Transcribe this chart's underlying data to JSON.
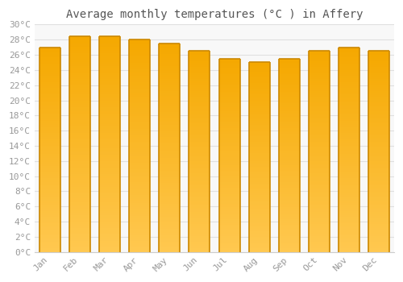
{
  "title": "Average monthly temperatures (°C ) in Affery",
  "months": [
    "Jan",
    "Feb",
    "Mar",
    "Apr",
    "May",
    "Jun",
    "Jul",
    "Aug",
    "Sep",
    "Oct",
    "Nov",
    "Dec"
  ],
  "values": [
    27.0,
    28.5,
    28.5,
    28.0,
    27.5,
    26.5,
    25.5,
    25.0,
    25.5,
    26.5,
    27.0,
    26.5
  ],
  "bar_color_top": "#F5A800",
  "bar_color_bottom": "#FFCC44",
  "bar_edge_left": "#CC8800",
  "bar_edge_right": "#DDAA00",
  "background_color": "#FFFFFF",
  "plot_bg_color": "#F8F8F8",
  "grid_color": "#E0E0E0",
  "text_color": "#999999",
  "title_color": "#555555",
  "ylim": [
    0,
    30
  ],
  "ytick_step": 2,
  "title_fontsize": 10,
  "tick_fontsize": 8,
  "font_family": "monospace",
  "bar_width": 0.7
}
